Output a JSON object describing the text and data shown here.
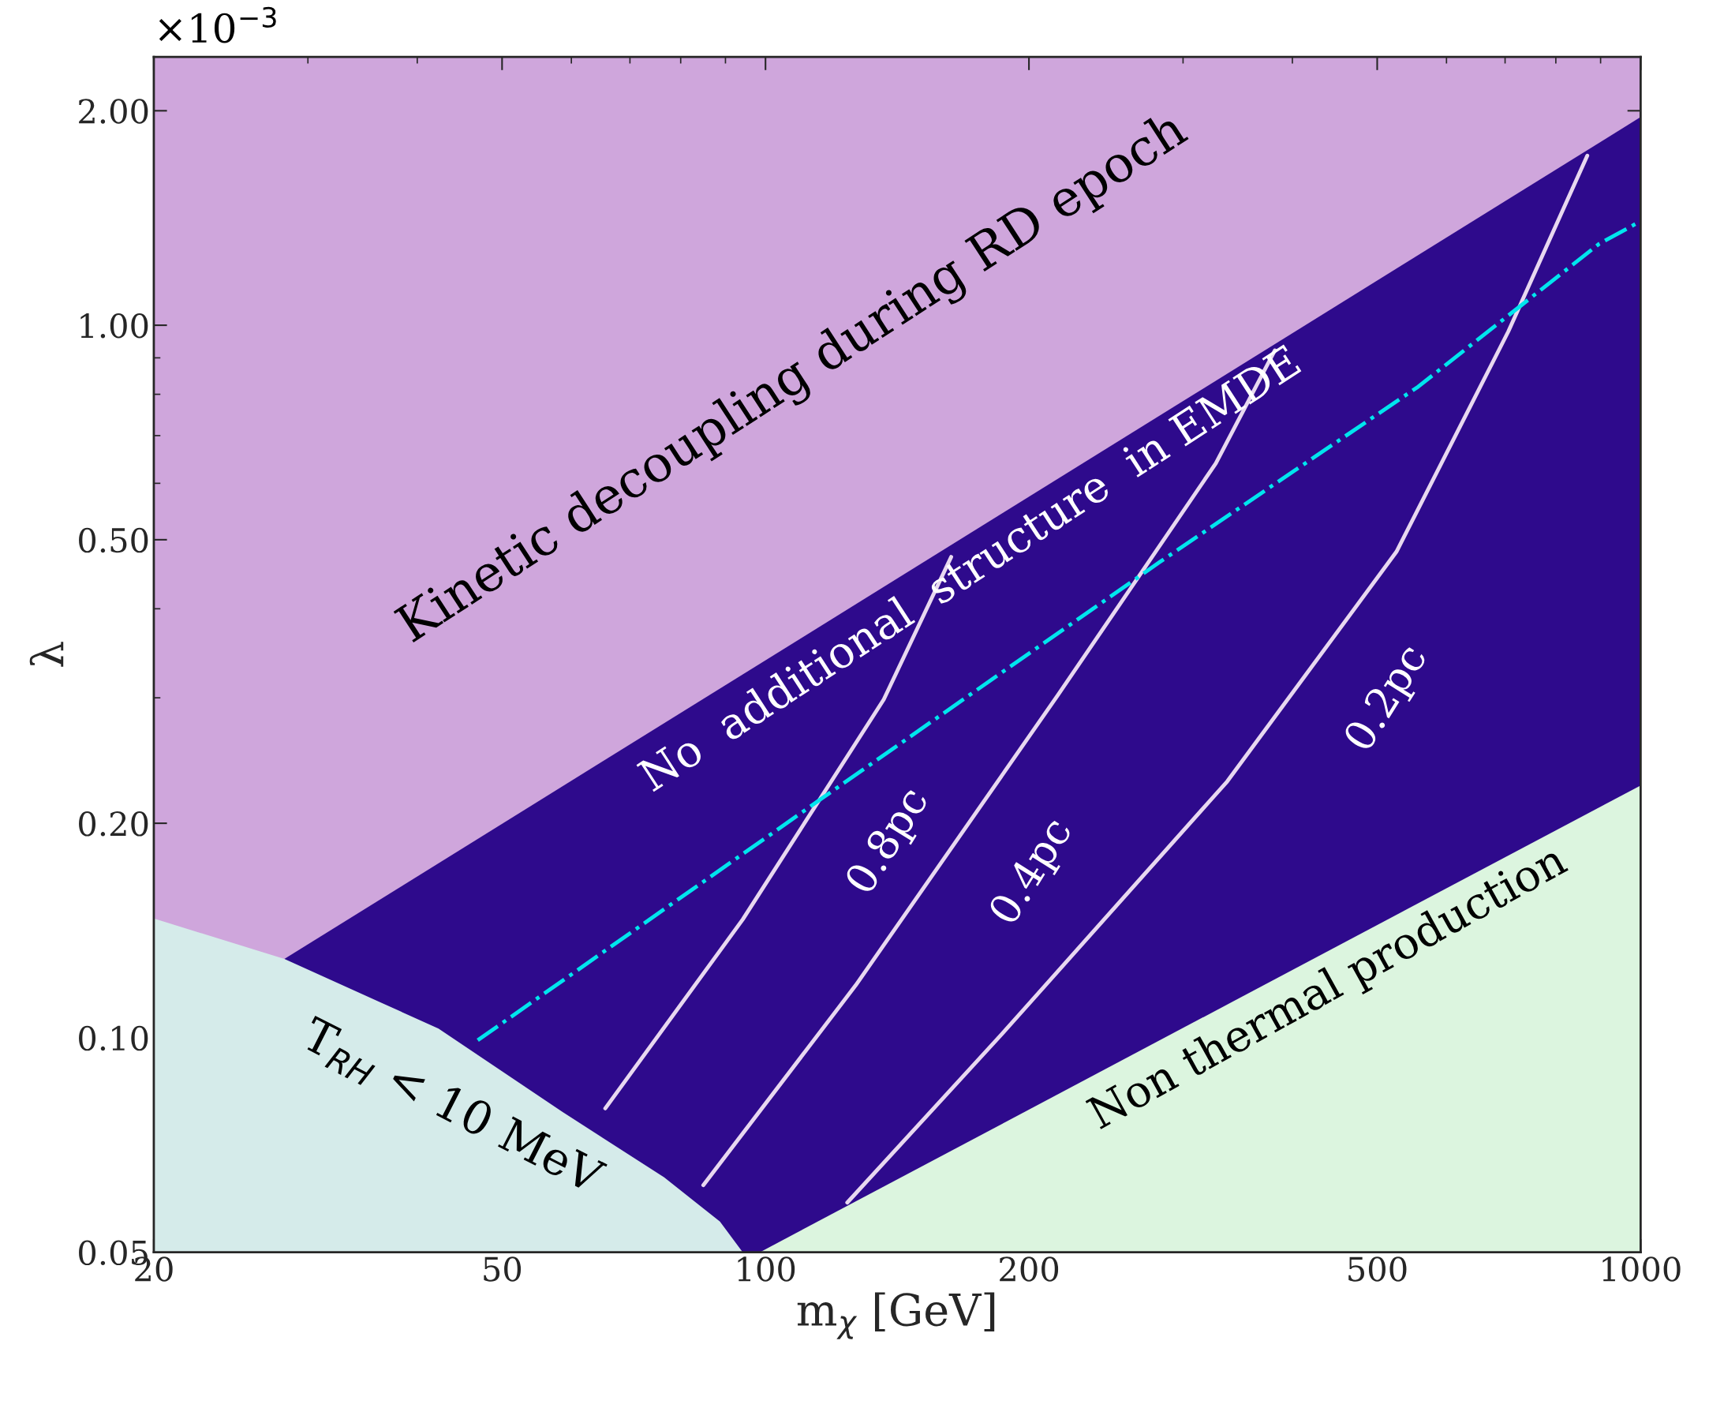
{
  "chart_data": {
    "type": "line",
    "xlabel": "m$_{χ}$ [GeV]",
    "ylabel": "λ",
    "annotations": [
      "×10$^{−3}$",
      "Kinetic decoupling during RD epoch",
      "No  additional  structure  in EMDE",
      "Non thermal production",
      "T$_{RH}$ < 10 MeV"
    ],
    "log": "xy",
    "xlim": [
      20,
      1000
    ],
    "ylim": [
      0.05,
      2.38
    ],
    "xticks": [
      20,
      50,
      100,
      200,
      500,
      1000
    ],
    "yticks": [
      {
        "value": 0.05,
        "label": "0.05"
      },
      {
        "value": 0.1,
        "label": "0.10"
      },
      {
        "value": 0.2,
        "label": "0.20"
      },
      {
        "value": 0.5,
        "label": "0.50"
      },
      {
        "value": 1.0,
        "label": "1.00"
      },
      {
        "value": 2.0,
        "label": "2.00"
      }
    ],
    "grid": false,
    "legend": false,
    "series": [
      {
        "type": "area",
        "color": "#2e0a8c",
        "x": [
          28.2,
          1000
        ],
        "values": [
          0.129,
          1.96
        ]
      },
      {
        "type": "area",
        "color": "#dcf5df",
        "x": [
          98.5,
          1000
        ],
        "values": [
          0.05,
          0.226
        ]
      },
      {
        "type": "area",
        "color": "#d5ebea",
        "x": [
          20,
          28.2,
          42.3,
          58.6,
          76.6,
          88.7,
          94.2
        ],
        "values": [
          0.147,
          0.129,
          0.103,
          0.0787,
          0.0637,
          0.0552,
          0.05
        ]
      },
      {
        "name": "0.8pc",
        "color": "#e8d8f0",
        "line_style": "solid",
        "x": [
          65.6,
          94.2,
          136.5,
          163
        ],
        "values": [
          0.0796,
          0.1466,
          0.2984,
          0.473
        ]
      },
      {
        "name": "0.4pc",
        "color": "#e8d8f0",
        "line_style": "solid",
        "x": [
          84.9,
          126.8,
          216,
          327,
          382
        ],
        "values": [
          0.0621,
          0.1185,
          0.303,
          0.64,
          0.922
        ]
      },
      {
        "name": "0.2pc",
        "color": "#e8d8f0",
        "line_style": "solid",
        "x": [
          124,
          186,
          337,
          526,
          706,
          869
        ],
        "values": [
          0.0587,
          0.101,
          0.229,
          0.481,
          0.98,
          1.73
        ]
      },
      {
        "color": "#00e5ee",
        "line_style": "dashdot",
        "x": [
          46.9,
          115.9,
          282,
          557,
          896,
          1000
        ],
        "values": [
          0.0992,
          0.2166,
          0.465,
          0.82,
          1.3,
          1.4
        ]
      }
    ]
  }
}
